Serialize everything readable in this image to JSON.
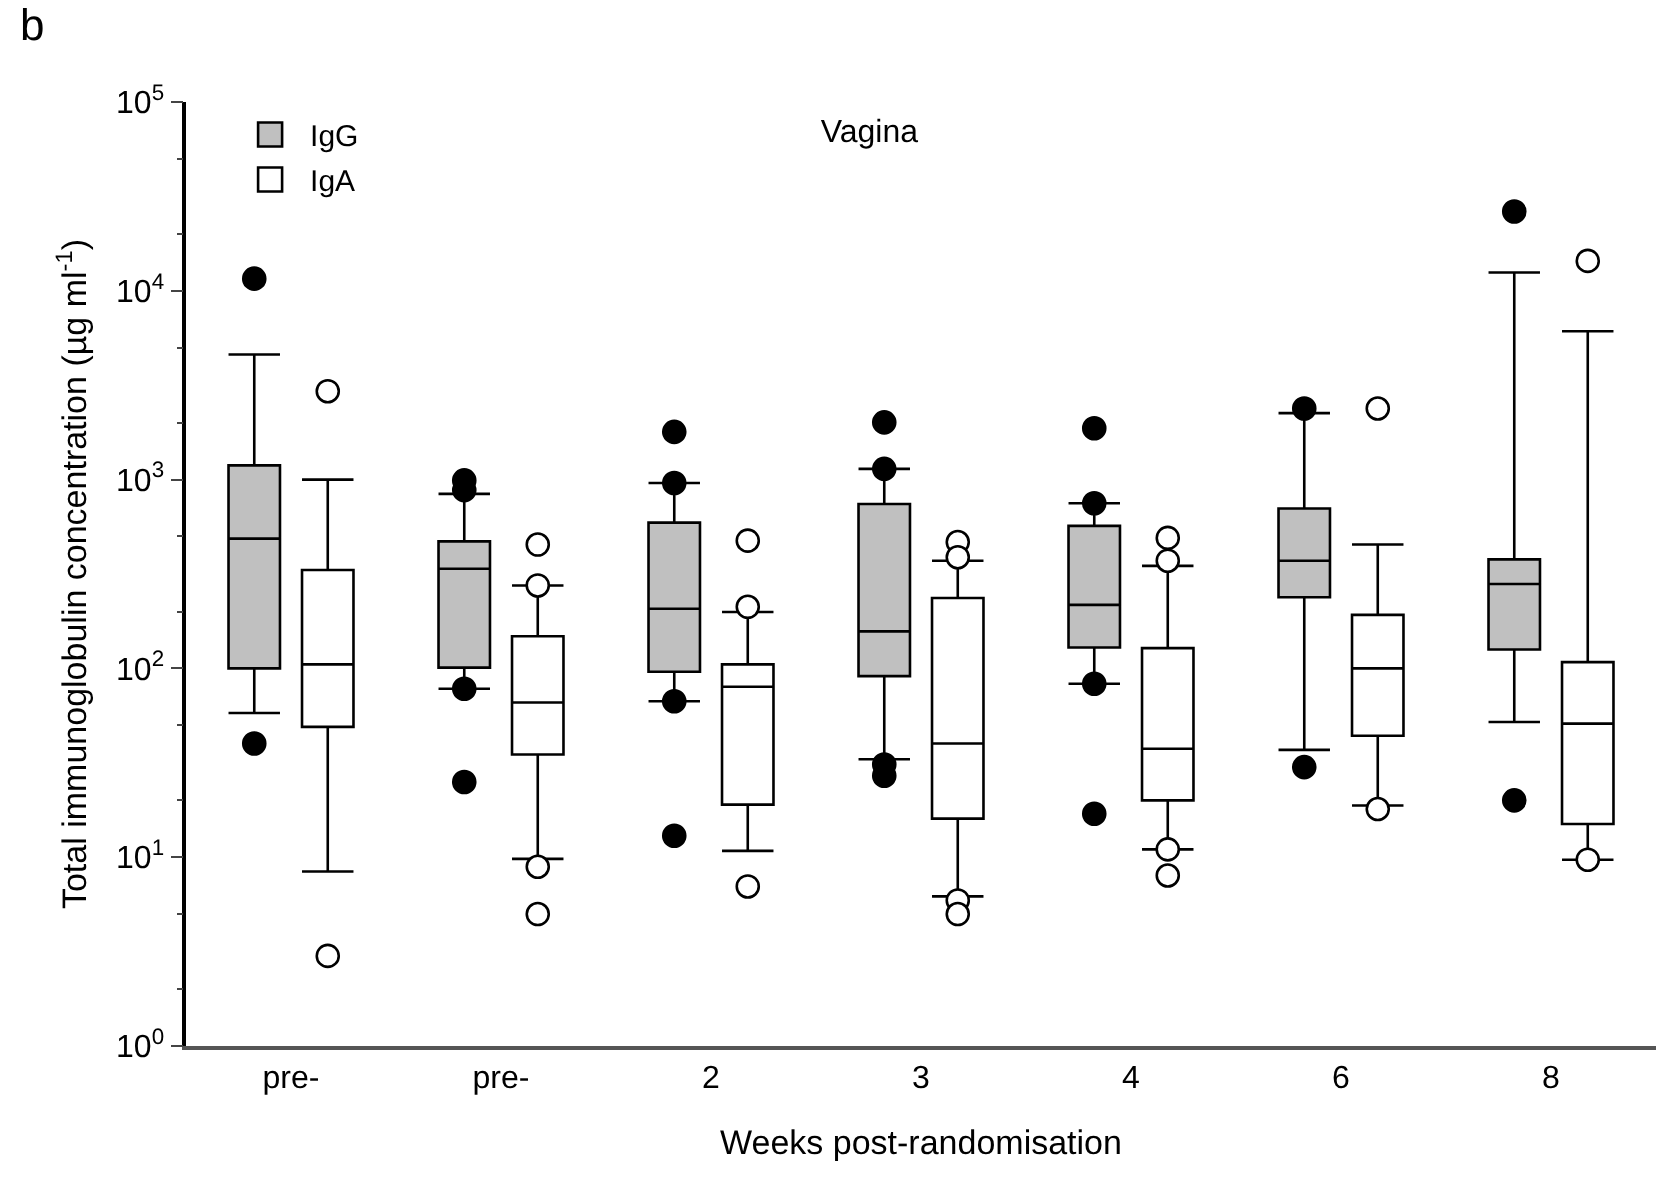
{
  "chart_data": {
    "type": "box",
    "title": "Vagina",
    "xlabel": "Weeks post-randomisation",
    "ylabel": "Total immunoglobulin concentration (µg ml$^{-1}$)",
    "annotations": [
      "b"
    ],
    "categories": [
      "pre-",
      "pre-",
      "2",
      "3",
      "4",
      "6",
      "8"
    ],
    "log": true,
    "ylim": [
      1,
      100000
    ],
    "yticks": [
      {
        "value": 1,
        "label": "10$^{0}$"
      },
      {
        "value": 10,
        "label": "10$^{1}$"
      },
      {
        "value": 100,
        "label": "10$^{2}$"
      },
      {
        "value": 1000,
        "label": "10$^{3}$"
      },
      {
        "value": 10000,
        "label": "10$^{4}$"
      },
      {
        "value": 100000,
        "label": "10$^{5}$"
      }
    ],
    "grid": false,
    "legend": "top left",
    "series": [
      {
        "name": "IgG",
        "color": "#c0c0c0",
        "boxes": [
          {
            "low": 58,
            "q1": 100,
            "median": 487,
            "q3": 1190,
            "high": 4600,
            "outliers": [
              11600,
              40
            ]
          },
          {
            "low": 78,
            "q1": 101,
            "median": 337,
            "q3": 471,
            "high": 840,
            "outliers": [
              990,
              880,
              78,
              25
            ]
          },
          {
            "low": 67,
            "q1": 96,
            "median": 207,
            "q3": 592,
            "high": 960,
            "outliers": [
              1790,
              960,
              67,
              13
            ]
          },
          {
            "low": 33,
            "q1": 91,
            "median": 157,
            "q3": 743,
            "high": 1140,
            "outliers": [
              2010,
              1140,
              31,
              27
            ]
          },
          {
            "low": 83,
            "q1": 129,
            "median": 217,
            "q3": 569,
            "high": 750,
            "outliers": [
              1870,
              750,
              83,
              17
            ]
          },
          {
            "low": 37,
            "q1": 238,
            "median": 372,
            "q3": 703,
            "high": 2250,
            "outliers": [
              2380,
              30
            ]
          },
          {
            "low": 52,
            "q1": 126,
            "median": 280,
            "q3": 378,
            "high": 12500,
            "outliers": [
              26300,
              20
            ]
          }
        ]
      },
      {
        "name": "IgA",
        "color": "#ffffff",
        "boxes": [
          {
            "low": 8.4,
            "q1": 49,
            "median": 105,
            "q3": 332,
            "high": 1000,
            "outliers": [
              2940,
              3
            ]
          },
          {
            "low": 9.8,
            "q1": 35,
            "median": 66,
            "q3": 148,
            "high": 275,
            "outliers": [
              453,
              275,
              8.9,
              5
            ]
          },
          {
            "low": 10.8,
            "q1": 19,
            "median": 80,
            "q3": 105,
            "high": 199,
            "outliers": [
              475,
              212,
              7
            ]
          },
          {
            "low": 6.2,
            "q1": 16,
            "median": 40,
            "q3": 236,
            "high": 372,
            "outliers": [
              467,
              388,
              5.9,
              5
            ]
          },
          {
            "low": 11,
            "q1": 20,
            "median": 37.5,
            "q3": 128,
            "high": 349,
            "outliers": [
              491,
              372,
              11,
              8
            ]
          },
          {
            "low": 18.8,
            "q1": 44,
            "median": 100,
            "q3": 192,
            "high": 453,
            "outliers": [
              2380,
              18
            ]
          },
          {
            "low": 9.7,
            "q1": 15,
            "median": 51,
            "q3": 108,
            "high": 6100,
            "outliers": [
              14400,
              9.7
            ]
          }
        ]
      }
    ]
  }
}
